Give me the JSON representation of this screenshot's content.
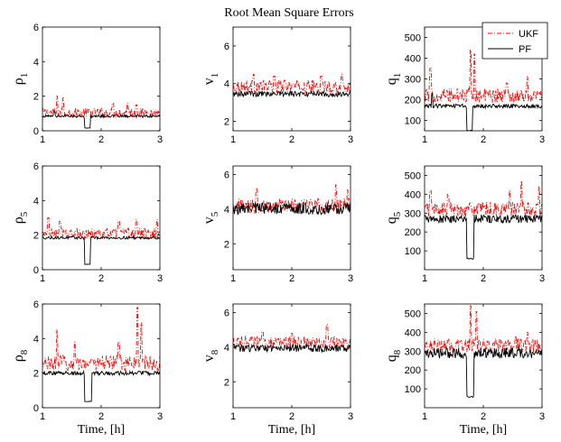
{
  "chart_data": {
    "type": "line",
    "title": "Root Mean Square Errors",
    "legend": {
      "placement": "top-right",
      "entries": [
        {
          "name": "UKF",
          "color": "#ff0000",
          "style": "dash-dot"
        },
        {
          "name": "PF",
          "color": "#000000",
          "style": "solid"
        }
      ]
    },
    "xlabel": "Time, [h]",
    "xlim": [
      1,
      3
    ],
    "xticks": [
      1,
      2,
      3
    ],
    "panels": [
      {
        "row": 0,
        "col": 0,
        "ylabel_main": "ρ",
        "ylabel_sub": "1",
        "ylim": [
          0,
          6
        ],
        "yticks": [
          0,
          2,
          4,
          6
        ],
        "series": [
          {
            "name": "UKF",
            "base": 1.05,
            "noise": 0.28,
            "spikes": [
              [
                1.25,
                2.0
              ],
              [
                1.35,
                1.9
              ],
              [
                2.2,
                1.6
              ],
              [
                2.45,
                1.6
              ],
              [
                2.6,
                1.5
              ]
            ]
          },
          {
            "name": "PF",
            "base": 0.85,
            "noise": 0.08,
            "dip": [
              1.72,
              1.82,
              0.15
            ],
            "spikes": [
              [
                1.2,
                1.1
              ]
            ]
          }
        ]
      },
      {
        "row": 0,
        "col": 1,
        "ylabel_main": "v",
        "ylabel_sub": "1",
        "ylim": [
          1.5,
          7
        ],
        "yticks": [
          2,
          4,
          6
        ],
        "series": [
          {
            "name": "UKF",
            "base": 3.85,
            "noise": 0.35,
            "spikes": [
              [
                1.35,
                4.5
              ],
              [
                1.7,
                4.4
              ],
              [
                2.5,
                4.4
              ],
              [
                2.85,
                4.5
              ]
            ]
          },
          {
            "name": "PF",
            "base": 3.45,
            "noise": 0.15,
            "spikes": []
          }
        ]
      },
      {
        "row": 0,
        "col": 2,
        "ylabel_main": "q",
        "ylabel_sub": "1",
        "ylim": [
          50,
          550
        ],
        "yticks": [
          100,
          200,
          300,
          400,
          500
        ],
        "series": [
          {
            "name": "UKF",
            "base": 220,
            "noise": 35,
            "spikes": [
              [
                1.1,
                350
              ],
              [
                1.78,
                440
              ],
              [
                1.85,
                420
              ],
              [
                2.4,
                280
              ],
              [
                2.75,
                310
              ]
            ]
          },
          {
            "name": "PF",
            "base": 170,
            "noise": 10,
            "dip": [
              1.72,
              1.82,
              50
            ],
            "spikes": [
              [
                1.13,
                230
              ]
            ]
          }
        ]
      },
      {
        "row": 1,
        "col": 0,
        "ylabel_main": "ρ",
        "ylabel_sub": "5",
        "ylim": [
          0,
          6
        ],
        "yticks": [
          0,
          2,
          4,
          6
        ],
        "series": [
          {
            "name": "UKF",
            "base": 2.1,
            "noise": 0.3,
            "spikes": [
              [
                1.1,
                3.0
              ],
              [
                1.3,
                2.8
              ],
              [
                2.3,
                2.8
              ],
              [
                2.6,
                2.9
              ],
              [
                2.95,
                2.9
              ]
            ]
          },
          {
            "name": "PF",
            "base": 1.85,
            "noise": 0.08,
            "dip": [
              1.72,
              1.82,
              0.3
            ],
            "spikes": []
          }
        ]
      },
      {
        "row": 1,
        "col": 1,
        "ylabel_main": "v",
        "ylabel_sub": "5",
        "ylim": [
          0.5,
          6.5
        ],
        "yticks": [
          2,
          4,
          6
        ],
        "series": [
          {
            "name": "UKF",
            "base": 4.2,
            "noise": 0.45,
            "spikes": [
              [
                1.4,
                5.2
              ],
              [
                2.75,
                5.4
              ],
              [
                2.95,
                5.1
              ]
            ]
          },
          {
            "name": "PF",
            "base": 4.05,
            "noise": 0.35,
            "spikes": []
          }
        ]
      },
      {
        "row": 1,
        "col": 2,
        "ylabel_main": "q",
        "ylabel_sub": "5",
        "ylim": [
          0,
          550
        ],
        "yticks": [
          100,
          200,
          300,
          400,
          500
        ],
        "series": [
          {
            "name": "UKF",
            "base": 320,
            "noise": 40,
            "spikes": [
              [
                1.1,
                420
              ],
              [
                1.4,
                400
              ],
              [
                2.45,
                420
              ],
              [
                2.65,
                470
              ],
              [
                2.95,
                440
              ]
            ]
          },
          {
            "name": "PF",
            "base": 270,
            "noise": 22,
            "dip": [
              1.72,
              1.84,
              55
            ],
            "spikes": []
          }
        ]
      },
      {
        "row": 2,
        "col": 0,
        "ylabel_main": "ρ",
        "ylabel_sub": "8",
        "ylim": [
          0,
          6
        ],
        "yticks": [
          0,
          2,
          4,
          6
        ],
        "series": [
          {
            "name": "UKF",
            "base": 2.6,
            "noise": 0.45,
            "spikes": [
              [
                1.25,
                4.5
              ],
              [
                1.55,
                3.8
              ],
              [
                2.3,
                3.8
              ],
              [
                2.62,
                5.8
              ],
              [
                2.68,
                4.9
              ]
            ]
          },
          {
            "name": "PF",
            "base": 2.0,
            "noise": 0.12,
            "dip": [
              1.72,
              1.84,
              0.35
            ],
            "spikes": []
          }
        ]
      },
      {
        "row": 2,
        "col": 1,
        "ylabel_main": "v",
        "ylabel_sub": "8",
        "ylim": [
          0.5,
          6.5
        ],
        "yticks": [
          2,
          4,
          6
        ],
        "series": [
          {
            "name": "UKF",
            "base": 4.3,
            "noise": 0.35,
            "spikes": [
              [
                1.5,
                4.9
              ],
              [
                2.0,
                4.8
              ],
              [
                2.6,
                5.3
              ]
            ]
          },
          {
            "name": "PF",
            "base": 3.95,
            "noise": 0.22,
            "spikes": []
          }
        ]
      },
      {
        "row": 2,
        "col": 2,
        "ylabel_main": "q",
        "ylabel_sub": "8",
        "ylim": [
          0,
          550
        ],
        "yticks": [
          100,
          200,
          300,
          400,
          500
        ],
        "series": [
          {
            "name": "UKF",
            "base": 330,
            "noise": 38,
            "spikes": [
              [
                1.6,
                350
              ],
              [
                1.78,
                540
              ],
              [
                1.88,
                510
              ],
              [
                2.55,
                380
              ],
              [
                2.75,
                400
              ]
            ]
          },
          {
            "name": "PF",
            "base": 290,
            "noise": 28,
            "dip": [
              1.72,
              1.84,
              55
            ],
            "spikes": []
          }
        ]
      }
    ]
  }
}
